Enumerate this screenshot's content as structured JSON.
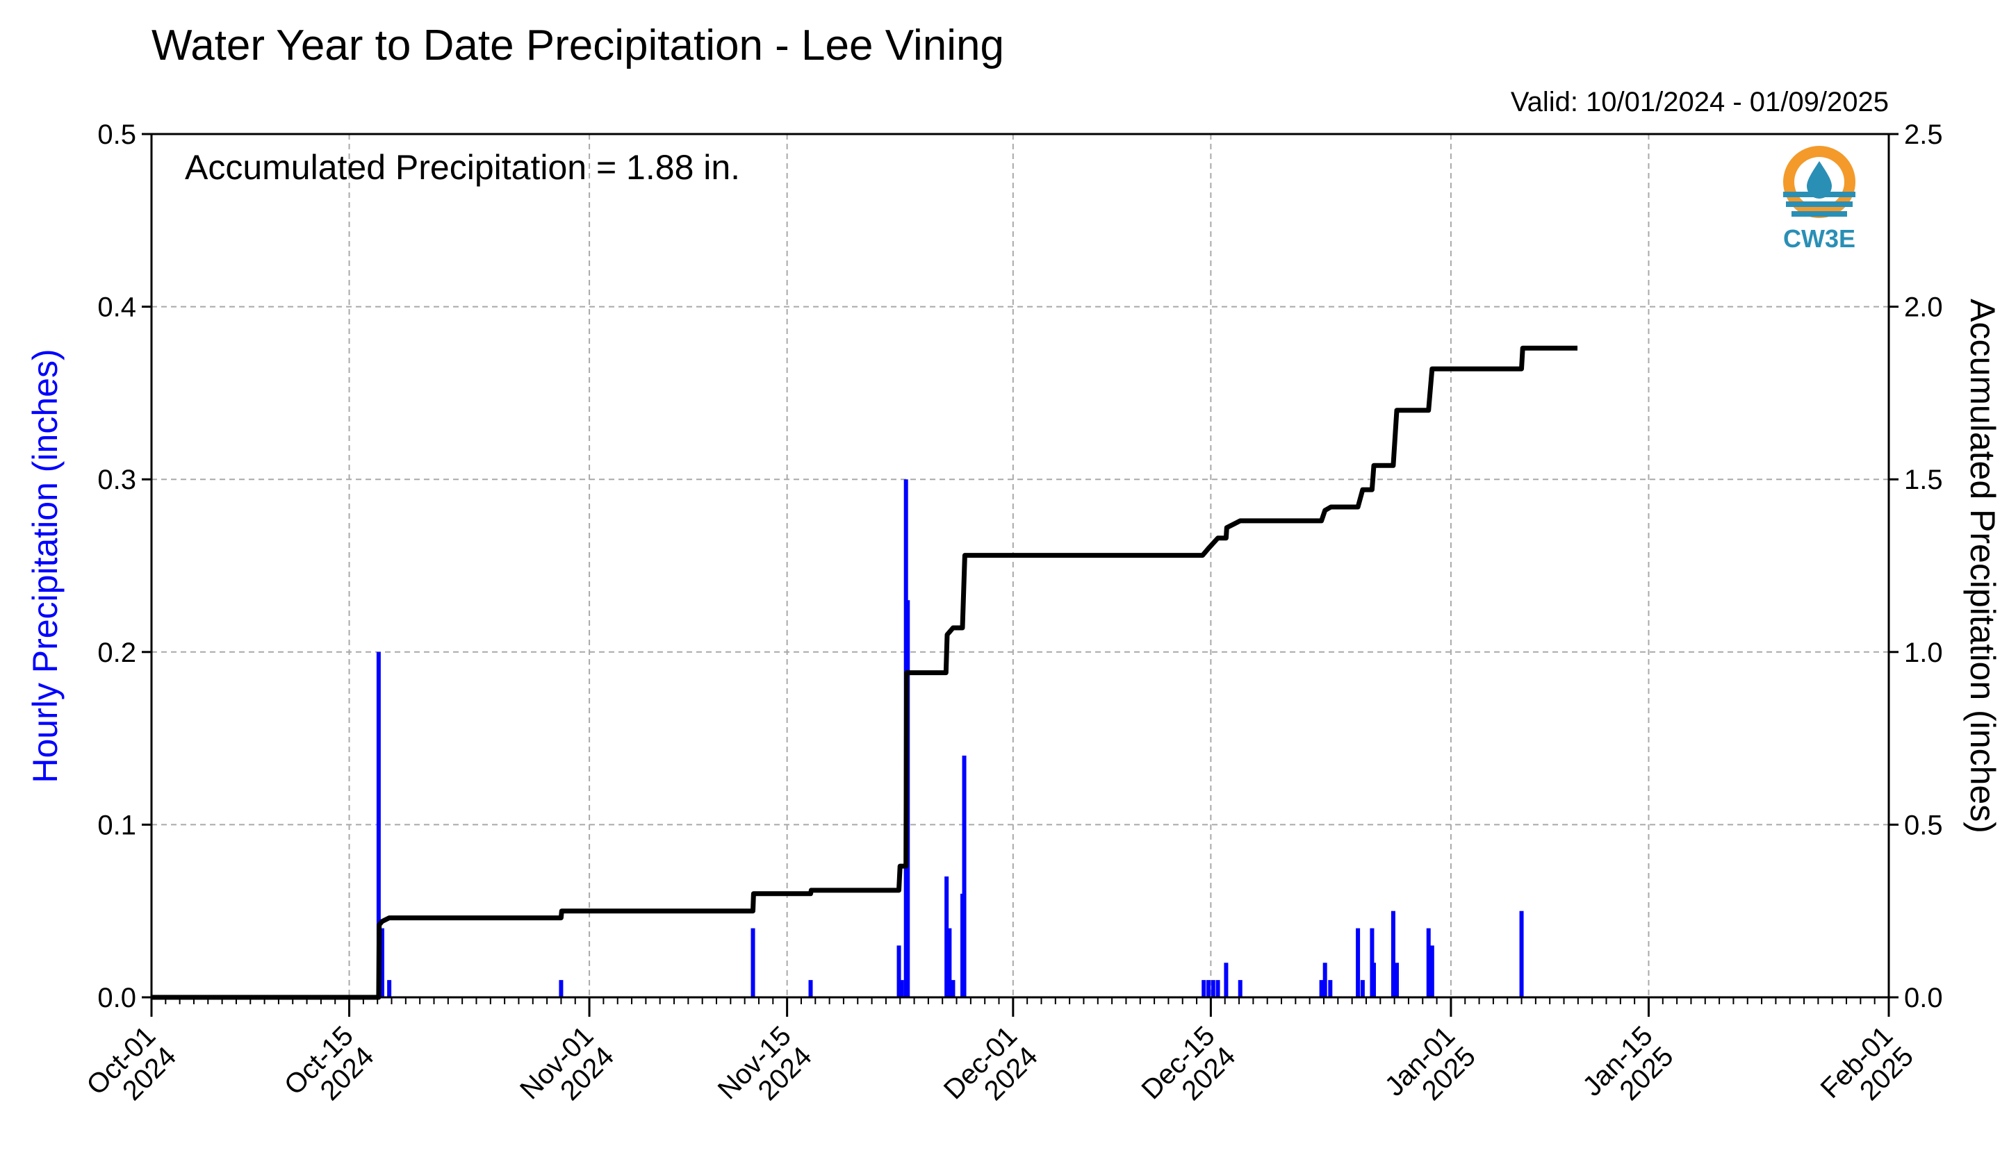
{
  "chart_data": {
    "type": "bar+line",
    "title": "Water Year to Date Precipitation - Lee Vining",
    "valid_text": "Valid: 10/01/2024 - 01/09/2025",
    "annotation": "Accumulated Precipitation = 1.88 in.",
    "ylabel_left": "Hourly Precipitation (inches)",
    "ylabel_right": "Accumulated Precipitation (inches)",
    "ylim_left": [
      0,
      0.5
    ],
    "ylim_right": [
      0,
      2.5
    ],
    "xlim": [
      "2024-10-01",
      "2025-02-01"
    ],
    "grid": true,
    "colors": {
      "hourly": "#0000ff",
      "accumulated": "#000000",
      "grid": "#a9a9a9"
    },
    "x_tick_labels": [
      {
        "date": "2024-10-01",
        "line1": "Oct-01",
        "line2": "2024"
      },
      {
        "date": "2024-10-15",
        "line1": "Oct-15",
        "line2": "2024"
      },
      {
        "date": "2024-11-01",
        "line1": "Nov-01",
        "line2": "2024"
      },
      {
        "date": "2024-11-15",
        "line1": "Nov-15",
        "line2": "2024"
      },
      {
        "date": "2024-12-01",
        "line1": "Dec-01",
        "line2": "2024"
      },
      {
        "date": "2024-12-15",
        "line1": "Dec-15",
        "line2": "2024"
      },
      {
        "date": "2025-01-01",
        "line1": "Jan-01",
        "line2": "2025"
      },
      {
        "date": "2025-01-15",
        "line1": "Jan-15",
        "line2": "2025"
      },
      {
        "date": "2025-02-01",
        "line1": "Feb-01",
        "line2": "2025"
      }
    ],
    "y_ticks_left": [
      "0.0",
      "0.1",
      "0.2",
      "0.3",
      "0.4",
      "0.5"
    ],
    "y_ticks_right": [
      "0.0",
      "0.5",
      "1.0",
      "1.5",
      "2.0",
      "2.5"
    ],
    "hourly_series": {
      "name": "Hourly Precipitation",
      "points": [
        [
          "2024-10-17T02:00",
          0.2
        ],
        [
          "2024-10-17T08:00",
          0.04
        ],
        [
          "2024-10-17T20:00",
          0.01
        ],
        [
          "2024-10-30T00:00",
          0.01
        ],
        [
          "2024-11-12T14:00",
          0.04
        ],
        [
          "2024-11-16T16:00",
          0.01
        ],
        [
          "2024-11-22T22:00",
          0.03
        ],
        [
          "2024-11-23T03:00",
          0.01
        ],
        [
          "2024-11-23T10:00",
          0.3
        ],
        [
          "2024-11-23T13:00",
          0.23
        ],
        [
          "2024-11-26T07:00",
          0.07
        ],
        [
          "2024-11-26T12:00",
          0.04
        ],
        [
          "2024-11-26T18:00",
          0.01
        ],
        [
          "2024-11-27T10:00",
          0.06
        ],
        [
          "2024-11-27T13:00",
          0.14
        ],
        [
          "2024-12-14T12:00",
          0.01
        ],
        [
          "2024-12-14T20:00",
          0.01
        ],
        [
          "2024-12-15T04:00",
          0.01
        ],
        [
          "2024-12-15T12:00",
          0.01
        ],
        [
          "2024-12-16T02:00",
          0.02
        ],
        [
          "2024-12-17T02:00",
          0.01
        ],
        [
          "2024-12-22T20:00",
          0.01
        ],
        [
          "2024-12-23T02:00",
          0.02
        ],
        [
          "2024-12-23T11:00",
          0.01
        ],
        [
          "2024-12-25T10:00",
          0.04
        ],
        [
          "2024-12-25T18:00",
          0.01
        ],
        [
          "2024-12-26T10:00",
          0.04
        ],
        [
          "2024-12-26T13:00",
          0.02
        ],
        [
          "2024-12-27T22:00",
          0.05
        ],
        [
          "2024-12-28T04:00",
          0.02
        ],
        [
          "2024-12-30T10:00",
          0.04
        ],
        [
          "2024-12-30T16:00",
          0.03
        ],
        [
          "2025-01-06T00:00",
          0.05
        ]
      ]
    },
    "accumulated_series": {
      "name": "Accumulated Precipitation",
      "points": [
        [
          "2024-10-01T00:00",
          0.0
        ],
        [
          "2024-10-17T02:00",
          0.0
        ],
        [
          "2024-10-17T03:00",
          0.21
        ],
        [
          "2024-10-17T08:00",
          0.22
        ],
        [
          "2024-10-17T20:00",
          0.23
        ],
        [
          "2024-10-30T00:00",
          0.23
        ],
        [
          "2024-10-30T01:00",
          0.25
        ],
        [
          "2024-11-12T14:00",
          0.25
        ],
        [
          "2024-11-12T15:00",
          0.3
        ],
        [
          "2024-11-16T16:00",
          0.3
        ],
        [
          "2024-11-16T17:00",
          0.31
        ],
        [
          "2024-11-22T22:00",
          0.31
        ],
        [
          "2024-11-23T00:00",
          0.38
        ],
        [
          "2024-11-23T10:00",
          0.38
        ],
        [
          "2024-11-23T11:00",
          0.94
        ],
        [
          "2024-11-26T06:00",
          0.94
        ],
        [
          "2024-11-26T08:00",
          1.05
        ],
        [
          "2024-11-26T18:00",
          1.07
        ],
        [
          "2024-11-27T10:00",
          1.07
        ],
        [
          "2024-11-27T14:00",
          1.28
        ],
        [
          "2024-12-14T10:00",
          1.28
        ],
        [
          "2024-12-14T20:00",
          1.3
        ],
        [
          "2024-12-15T12:00",
          1.33
        ],
        [
          "2024-12-16T02:00",
          1.33
        ],
        [
          "2024-12-16T03:00",
          1.36
        ],
        [
          "2024-12-17T02:00",
          1.38
        ],
        [
          "2024-12-22T20:00",
          1.38
        ],
        [
          "2024-12-23T02:00",
          1.41
        ],
        [
          "2024-12-23T12:00",
          1.42
        ],
        [
          "2024-12-25T10:00",
          1.42
        ],
        [
          "2024-12-25T18:00",
          1.47
        ],
        [
          "2024-12-26T10:00",
          1.47
        ],
        [
          "2024-12-26T13:00",
          1.54
        ],
        [
          "2024-12-27T22:00",
          1.54
        ],
        [
          "2024-12-28T04:00",
          1.7
        ],
        [
          "2024-12-30T10:00",
          1.7
        ],
        [
          "2024-12-30T16:00",
          1.82
        ],
        [
          "2025-01-06T00:00",
          1.82
        ],
        [
          "2025-01-06T02:00",
          1.88
        ],
        [
          "2025-01-09T23:00",
          1.88
        ]
      ]
    }
  },
  "logo": {
    "text": "CW3E",
    "orange": "#f39a2b",
    "blue": "#2a8fb5"
  }
}
